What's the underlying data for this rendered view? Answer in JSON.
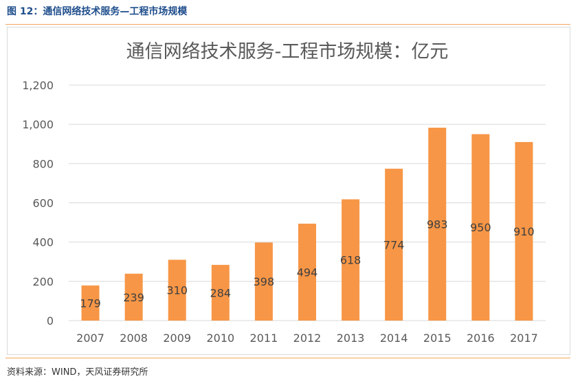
{
  "figure": {
    "caption": "图 12：通信网络技术服务—工程市场规模",
    "source": "资料来源：WIND，天风证券研究所"
  },
  "chart_data": {
    "type": "bar",
    "title": "通信网络技术服务-工程市场规模：亿元",
    "categories": [
      "2007",
      "2008",
      "2009",
      "2010",
      "2011",
      "2012",
      "2013",
      "2014",
      "2015",
      "2016",
      "2017"
    ],
    "values": [
      179,
      239,
      310,
      284,
      398,
      494,
      618,
      774,
      983,
      950,
      910
    ],
    "data_labels": [
      "179",
      "239",
      "310",
      "284",
      "398",
      "494",
      "618",
      "774",
      "983",
      "950",
      "910"
    ],
    "ylim": [
      0,
      1200
    ],
    "yticks": [
      0,
      200,
      400,
      600,
      800,
      1000,
      1200
    ],
    "ytick_labels": [
      "0",
      "200",
      "400",
      "600",
      "800",
      "1,000",
      "1,200"
    ],
    "grid": true,
    "bar_color": "#F79646"
  }
}
